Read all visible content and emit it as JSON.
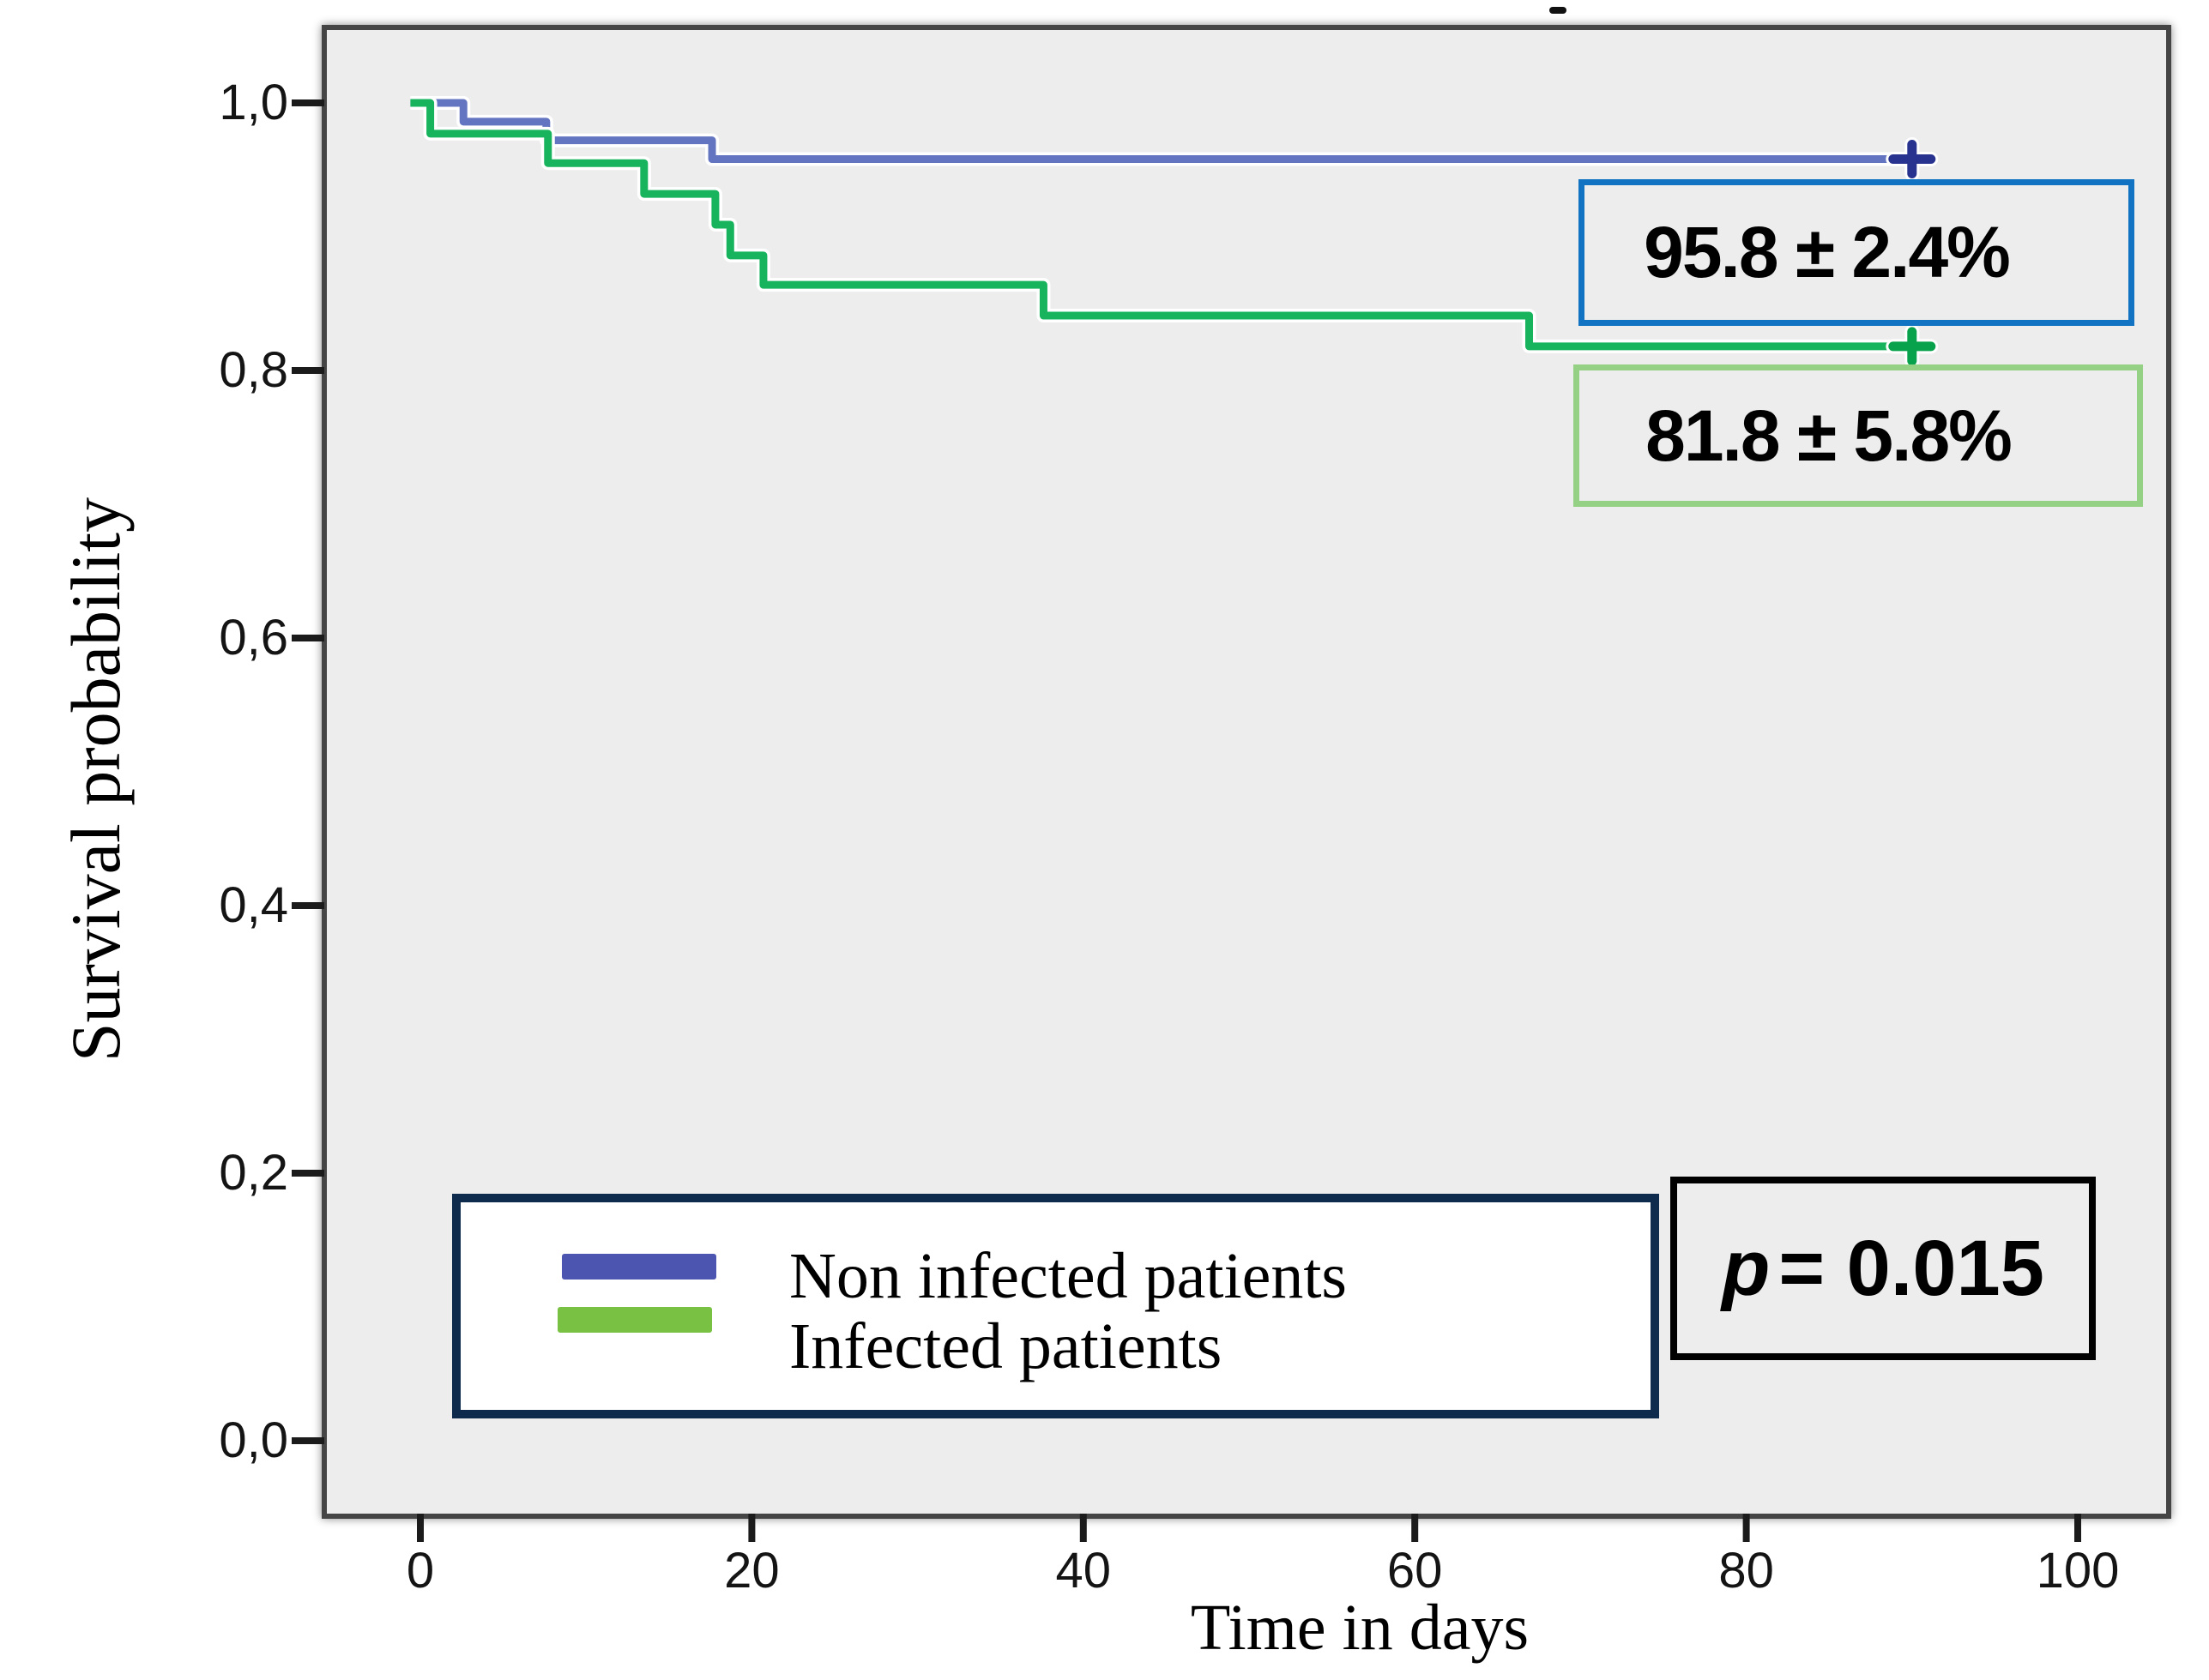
{
  "figure": {
    "page_bg": "#ffffff",
    "plot_bg": "#ededed",
    "plot_border_color": "#454545",
    "top_dash_artifact": "-"
  },
  "y_axis": {
    "title": "Survival probability",
    "tick_labels": [
      "1,0",
      "0,8",
      "0,6",
      "0,4",
      "0,2",
      "0,0"
    ],
    "tick_values": [
      1.0,
      0.8,
      0.6,
      0.4,
      0.2,
      0.0
    ]
  },
  "x_axis": {
    "title": "Time in days",
    "tick_labels": [
      "0",
      "20",
      "40",
      "60",
      "80",
      "100"
    ],
    "tick_values": [
      0,
      20,
      40,
      60,
      80,
      100
    ]
  },
  "chart_data": {
    "type": "line",
    "subtype": "kaplan_meier_step",
    "title": "",
    "xlabel": "Time in days",
    "ylabel": "Survival probability",
    "xlim": [
      0,
      100
    ],
    "ylim": [
      0.0,
      1.0
    ],
    "grid": false,
    "legend_position": "inside-bottom-left",
    "curve_start_day": -0.6,
    "curve_end_day": 91,
    "series": [
      {
        "name": "Non infected patients",
        "color": "#6374c1",
        "censor_color": "#27338e",
        "steps": [
          [
            0,
            1.0
          ],
          [
            2.6,
            0.986
          ],
          [
            7.6,
            0.972
          ],
          [
            17.6,
            0.958
          ]
        ],
        "censor_marks": [
          [
            90,
            0.958
          ]
        ],
        "final_estimate": "95.8 ± 2.4%"
      },
      {
        "name": "Infected patients",
        "color": "#17b35d",
        "censor_color": "#09a24c",
        "steps": [
          [
            0,
            1.0
          ],
          [
            0.6,
            0.977
          ],
          [
            7.7,
            0.955
          ],
          [
            13.5,
            0.932
          ],
          [
            17.8,
            0.909
          ],
          [
            18.7,
            0.886
          ],
          [
            20.7,
            0.864
          ],
          [
            37.6,
            0.841
          ],
          [
            66.9,
            0.818
          ]
        ],
        "censor_marks": [
          [
            90,
            0.818
          ]
        ],
        "final_estimate": "81.8 ± 5.8%"
      }
    ],
    "p_value": "p = 0.015"
  },
  "legend": {
    "border_color": "#0e2a4c",
    "items": [
      {
        "label": "Non infected patients",
        "swatch_color": "#4c55b0"
      },
      {
        "label": "Infected patients",
        "swatch_color": "#79c143"
      }
    ]
  },
  "annotations": {
    "blue_box": {
      "text": "95.8 ± 2.4%",
      "border_color": "#1173c2"
    },
    "green_box": {
      "text": "81.8 ± 5.8%",
      "border_color": "#95d184"
    },
    "p_box": {
      "symbol": "p",
      "rest": "= 0.015",
      "border_color": "#000000"
    }
  }
}
